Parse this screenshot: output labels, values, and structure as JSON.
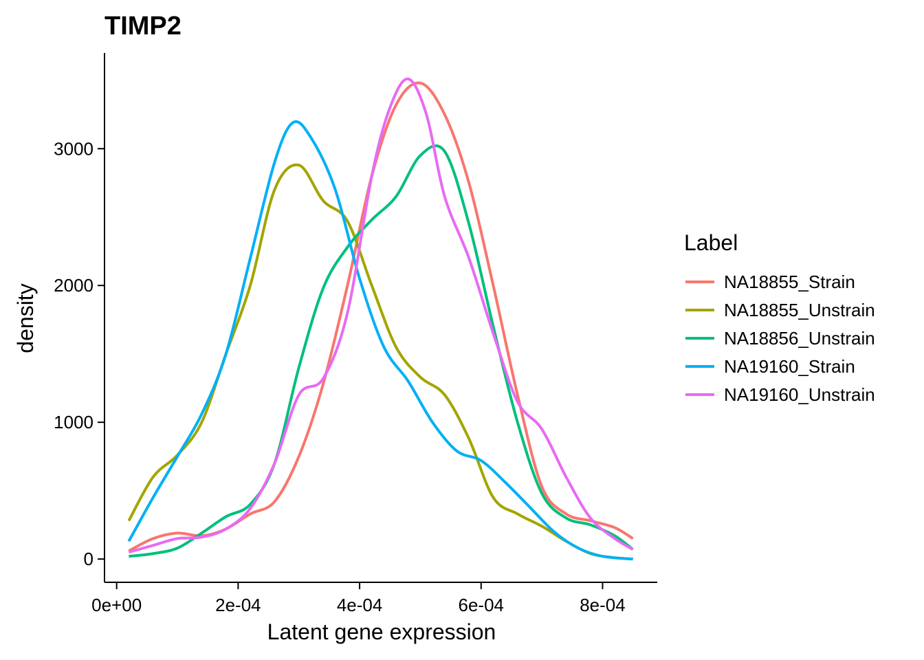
{
  "chart_data": {
    "type": "line",
    "title": "TIMP2",
    "xlabel": "Latent gene expression",
    "ylabel": "density",
    "xlim": [
      -2e-05,
      0.00089
    ],
    "ylim": [
      -170,
      3700
    ],
    "xticks": [
      0,
      0.0002,
      0.0004,
      0.0006,
      0.0008
    ],
    "xtick_labels": [
      "0e+00",
      "2e-04",
      "4e-04",
      "6e-04",
      "8e-04"
    ],
    "yticks": [
      0,
      1000,
      2000,
      3000
    ],
    "ytick_labels": [
      "0",
      "1000",
      "2000",
      "3000"
    ],
    "grid": false,
    "legend": {
      "title": "Label",
      "position": "right"
    },
    "series": [
      {
        "name": "NA18855_Strain",
        "color": "#F8766D",
        "x": [
          2e-05,
          6e-05,
          0.0001,
          0.00014,
          0.00018,
          0.00022,
          0.00026,
          0.0003,
          0.00034,
          0.00038,
          0.00042,
          0.00046,
          0.0005,
          0.00054,
          0.00058,
          0.00062,
          0.00066,
          0.0007,
          0.00074,
          0.00078,
          0.00082,
          0.00085
        ],
        "y": [
          60,
          150,
          190,
          170,
          220,
          330,
          420,
          750,
          1280,
          2000,
          2800,
          3320,
          3480,
          3250,
          2750,
          2000,
          1200,
          530,
          330,
          280,
          230,
          150
        ]
      },
      {
        "name": "NA18855_Unstrain",
        "color": "#A3A500",
        "x": [
          2e-05,
          6e-05,
          0.0001,
          0.00014,
          0.00018,
          0.00022,
          0.00026,
          0.0003,
          0.00034,
          0.00038,
          0.00042,
          0.00046,
          0.0005,
          0.00054,
          0.00058,
          0.00062,
          0.00066,
          0.0007,
          0.00074,
          0.00078,
          0.00082,
          0.00085
        ],
        "y": [
          280,
          600,
          760,
          1000,
          1500,
          2000,
          2700,
          2880,
          2620,
          2470,
          2000,
          1550,
          1330,
          1200,
          880,
          450,
          330,
          240,
          130,
          40,
          10,
          0
        ]
      },
      {
        "name": "NA18856_Unstrain",
        "color": "#00BF7D",
        "x": [
          2e-05,
          6e-05,
          0.0001,
          0.00014,
          0.00018,
          0.00022,
          0.00026,
          0.0003,
          0.00034,
          0.00038,
          0.00042,
          0.00046,
          0.0005,
          0.00054,
          0.00058,
          0.00062,
          0.00066,
          0.0007,
          0.00074,
          0.00078,
          0.00082,
          0.00085
        ],
        "y": [
          20,
          40,
          80,
          190,
          310,
          400,
          700,
          1400,
          1980,
          2280,
          2480,
          2650,
          2950,
          2980,
          2450,
          1700,
          1000,
          480,
          300,
          250,
          170,
          70
        ]
      },
      {
        "name": "NA19160_Strain",
        "color": "#00B0F6",
        "x": [
          2e-05,
          6e-05,
          0.0001,
          0.00014,
          0.00018,
          0.00022,
          0.00026,
          0.00029,
          0.00032,
          0.00036,
          0.0004,
          0.00044,
          0.00048,
          0.00052,
          0.00056,
          0.0006,
          0.00064,
          0.00068,
          0.00072,
          0.00076,
          0.0008,
          0.00085
        ],
        "y": [
          130,
          450,
          750,
          1060,
          1500,
          2200,
          2900,
          3190,
          3080,
          2700,
          2050,
          1550,
          1300,
          1000,
          790,
          720,
          560,
          380,
          200,
          80,
          20,
          0
        ]
      },
      {
        "name": "NA19160_Unstrain",
        "color": "#E76BF3",
        "x": [
          2e-05,
          6e-05,
          0.0001,
          0.00014,
          0.00018,
          0.00022,
          0.00026,
          0.0003,
          0.00034,
          0.00038,
          0.00042,
          0.00045,
          0.00048,
          0.00051,
          0.00054,
          0.00058,
          0.00062,
          0.00066,
          0.0007,
          0.00074,
          0.00078,
          0.00082,
          0.00085
        ],
        "y": [
          50,
          100,
          150,
          160,
          220,
          370,
          700,
          1200,
          1320,
          1800,
          2800,
          3300,
          3510,
          3250,
          2650,
          2200,
          1650,
          1150,
          950,
          600,
          300,
          150,
          70
        ]
      }
    ]
  }
}
